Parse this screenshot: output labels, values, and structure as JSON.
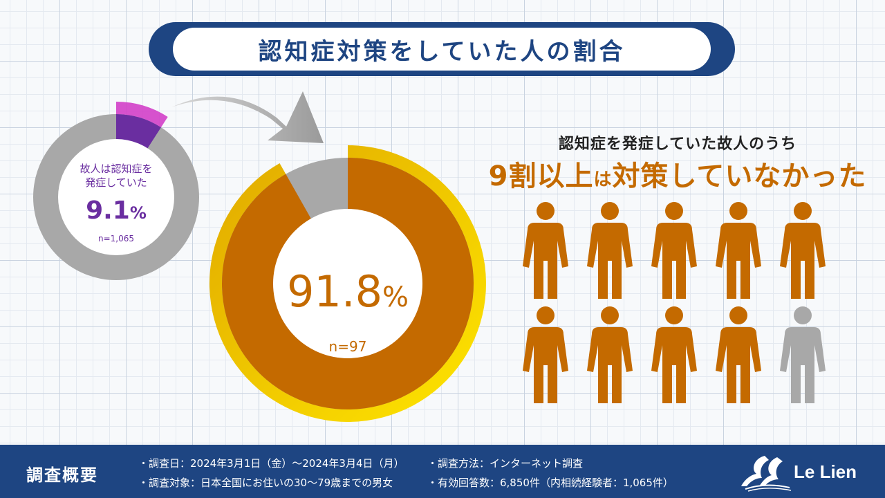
{
  "title": "認知症対策をしていた人の割合",
  "chart_data": [
    {
      "type": "pie",
      "variant": "donut",
      "label": "故人は認知症を発症していた",
      "label_lines": [
        "故人は認知症を",
        "発症していた"
      ],
      "value_text": "9.1",
      "value_unit": "%",
      "n_text": "n=1,065",
      "slices": [
        {
          "label": "故人は認知症を発症していた",
          "value": 9.1,
          "color": "#6a2ea0"
        },
        {
          "label": "",
          "value": 90.9,
          "color": "#a8a8a8"
        }
      ]
    },
    {
      "type": "pie",
      "variant": "donut",
      "value_text": "91.8",
      "value_unit": "%",
      "n_text": "n=97",
      "slices": [
        {
          "label": "",
          "value": 91.8,
          "color": "#c46a00"
        },
        {
          "label": "",
          "value": 8.2,
          "color": "#a8a8a8"
        }
      ]
    }
  ],
  "pictogram": {
    "total": 10,
    "highlighted": 9,
    "color_on": "#c46a00",
    "color_off": "#a8a8a8"
  },
  "headline": {
    "sub": "認知症を発症していた故人のうち",
    "part1": "9割以上",
    "part2": "は",
    "part3": "対策していなかった"
  },
  "footer": {
    "label": "調査概要",
    "date": "・調査日：2024年3月1日（金）〜2024年3月4日（月）",
    "method": "・調査方法：インターネット調査",
    "target": "・調査対象：日本全国にお住いの30〜79歳までの男女",
    "responses": "・有効回答数：6,850件（内相続経験者：1,065件）",
    "logo_text": "Le Lien"
  },
  "colors": {
    "navy": "#1e4582",
    "orange": "#c46a00",
    "gold_ring": "#f2c200",
    "purple": "#6a2ea0",
    "magenta": "#d23fc8",
    "gray": "#a8a8a8"
  }
}
